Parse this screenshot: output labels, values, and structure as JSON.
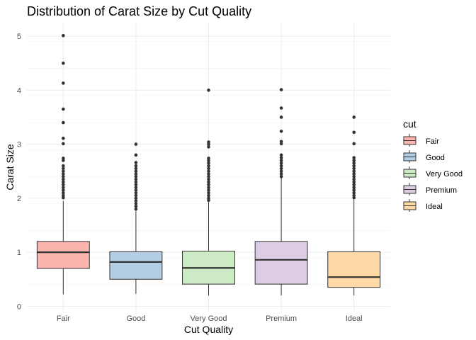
{
  "chart_data": {
    "type": "boxplot",
    "title": "Distribution of Carat Size by Cut Quality",
    "xlabel": "Cut Quality",
    "ylabel": "Carat Size",
    "ylim": [
      -0.1,
      5.25
    ],
    "yticks": [
      0,
      1,
      2,
      3,
      4,
      5
    ],
    "grid": true,
    "legend": {
      "title": "cut",
      "position": "right"
    },
    "categories": [
      "Fair",
      "Good",
      "Very Good",
      "Premium",
      "Ideal"
    ],
    "series": [
      {
        "name": "Fair",
        "color": "#FBB4AE",
        "whisker_low": 0.22,
        "q1": 0.7,
        "median": 1.0,
        "q3": 1.2,
        "whisker_high": 1.95,
        "outliers": [
          5.01,
          4.5,
          4.13,
          3.65,
          3.4,
          3.11,
          3.01,
          2.74,
          2.7,
          2.6,
          2.55,
          2.5,
          2.45,
          2.4,
          2.35,
          2.3,
          2.25,
          2.2,
          2.15,
          2.1,
          2.05,
          2.01
        ]
      },
      {
        "name": "Good",
        "color": "#B3CDE3",
        "whisker_low": 0.23,
        "q1": 0.5,
        "median": 0.82,
        "q3": 1.01,
        "whisker_high": 1.77,
        "outliers": [
          3.0,
          2.8,
          2.66,
          2.6,
          2.55,
          2.5,
          2.45,
          2.4,
          2.35,
          2.3,
          2.25,
          2.2,
          2.15,
          2.1,
          2.05,
          2.0,
          1.95,
          1.9,
          1.85,
          1.8
        ]
      },
      {
        "name": "Very Good",
        "color": "#CCEBC5",
        "whisker_low": 0.2,
        "q1": 0.41,
        "median": 0.71,
        "q3": 1.02,
        "whisker_high": 1.93,
        "outliers": [
          4.0,
          3.04,
          3.0,
          2.95,
          2.74,
          2.7,
          2.65,
          2.6,
          2.55,
          2.5,
          2.45,
          2.4,
          2.35,
          2.3,
          2.25,
          2.2,
          2.15,
          2.1,
          2.05,
          2.0,
          1.96
        ]
      },
      {
        "name": "Premium",
        "color": "#DECBE4",
        "whisker_low": 0.2,
        "q1": 0.41,
        "median": 0.86,
        "q3": 1.2,
        "whisker_high": 2.38,
        "outliers": [
          4.01,
          3.67,
          3.5,
          3.24,
          3.05,
          3.01,
          2.8,
          2.75,
          2.7,
          2.65,
          2.6,
          2.55,
          2.5,
          2.45,
          2.4
        ]
      },
      {
        "name": "Ideal",
        "color": "#FED9A6",
        "whisker_low": 0.2,
        "q1": 0.35,
        "median": 0.54,
        "q3": 1.01,
        "whisker_high": 1.98,
        "outliers": [
          3.5,
          3.22,
          3.01,
          2.75,
          2.7,
          2.65,
          2.6,
          2.55,
          2.5,
          2.45,
          2.4,
          2.35,
          2.3,
          2.25,
          2.2,
          2.15,
          2.1,
          2.05,
          2.01
        ]
      }
    ]
  }
}
